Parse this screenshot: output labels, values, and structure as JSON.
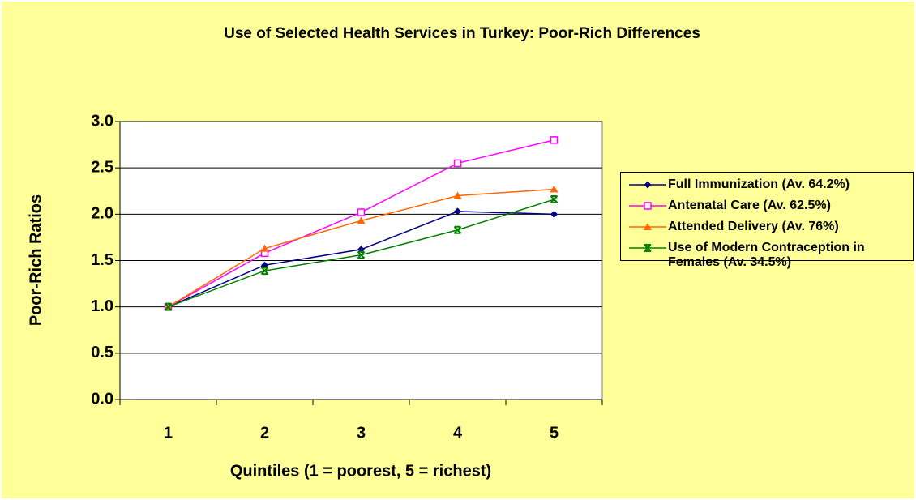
{
  "chart_data": {
    "type": "line",
    "title": "Use of Selected Health Services in Turkey: Poor-Rich Differences",
    "x_label": "Quintiles (1 = poorest, 5 = richest)",
    "y_label": "Poor-Rich Ratios",
    "categories": [
      "1",
      "2",
      "3",
      "4",
      "5"
    ],
    "series": [
      {
        "name": "Full Immunization (Av. 64.2%)",
        "color": "#000080",
        "marker": "diamond",
        "values": [
          1.0,
          1.45,
          1.62,
          2.03,
          2.0
        ]
      },
      {
        "name": "Antenatal Care (Av. 62.5%)",
        "color": "#FF00FF",
        "marker": "square",
        "values": [
          1.0,
          1.58,
          2.02,
          2.55,
          2.8
        ]
      },
      {
        "name": "Attended Delivery (Av. 76%)",
        "color": "#FF6600",
        "marker": "triangle",
        "values": [
          1.0,
          1.63,
          1.93,
          2.2,
          2.27
        ]
      },
      {
        "name": "Use of Modern Contraception in Females (Av. 34.5%)",
        "color": "#008000",
        "marker": "x-square",
        "values": [
          1.0,
          1.39,
          1.56,
          1.83,
          2.16
        ]
      }
    ],
    "ylim": [
      0,
      3
    ],
    "yticks": [
      {
        "value": 0,
        "label": "0.0"
      },
      {
        "value": 0.5,
        "label": "0.5"
      },
      {
        "value": 1,
        "label": "1.0"
      },
      {
        "value": 1.5,
        "label": "1.5"
      },
      {
        "value": 2,
        "label": "2.0"
      },
      {
        "value": 2.5,
        "label": "2.5"
      },
      {
        "value": 3,
        "label": "3.0"
      }
    ],
    "grid": true,
    "legend": "right"
  }
}
